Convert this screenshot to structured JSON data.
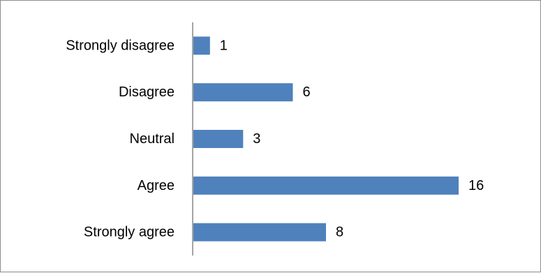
{
  "chart_data": {
    "type": "bar",
    "orientation": "horizontal",
    "categories": [
      "Strongly disagree",
      "Disagree",
      "Neutral",
      "Agree",
      "Strongly agree"
    ],
    "values": [
      1,
      6,
      3,
      16,
      8
    ],
    "title": "",
    "xlabel": "",
    "ylabel": "",
    "xlim": [
      0,
      16
    ],
    "grid": false,
    "legend": "none",
    "data_labels": true,
    "bar_color": "#4f81bd",
    "axis_color": "#868686"
  }
}
